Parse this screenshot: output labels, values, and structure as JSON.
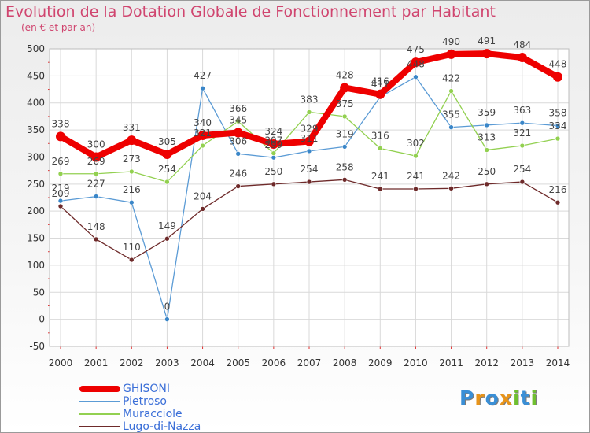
{
  "header": {
    "title": "Evolution de la Dotation Globale de Fonctionnement par Habitant",
    "subtitle": "(en € et par an)"
  },
  "brand": {
    "logo_text": "Proxiti",
    "letters": [
      {
        "char": "P",
        "color": "#3a8fd6"
      },
      {
        "char": "r",
        "color": "#e8941a"
      },
      {
        "char": "o",
        "color": "#3a8fd6"
      },
      {
        "char": "x",
        "color": "#e8941a"
      },
      {
        "char": "i",
        "color": "#6fbf2f"
      },
      {
        "char": "t",
        "color": "#3a8fd6"
      },
      {
        "char": "i",
        "color": "#6fbf2f"
      }
    ]
  },
  "colors": {
    "title": "#d0456f",
    "legend_text": "#3b6fd8",
    "grid": "#d9d9d9",
    "axis_text": "#333333",
    "tick_marks": "#e03030"
  },
  "chart_data": {
    "type": "line",
    "title": "Evolution de la Dotation Globale de Fonctionnement par Habitant",
    "subtitle": "(en € et par an)",
    "x": [
      2000,
      2001,
      2002,
      2003,
      2004,
      2005,
      2006,
      2007,
      2008,
      2009,
      2010,
      2011,
      2012,
      2013,
      2014
    ],
    "ylim": [
      -50,
      500
    ],
    "yticks": [
      -50,
      0,
      50,
      100,
      150,
      200,
      250,
      300,
      350,
      400,
      450,
      500
    ],
    "grid": true,
    "legend_position": "bottom-left",
    "series": [
      {
        "name": "GHISONI",
        "color": "#ee0000",
        "values": [
          338,
          300,
          331,
          305,
          340,
          345,
          324,
          329,
          428,
          416,
          475,
          490,
          491,
          484,
          448
        ],
        "labels": [
          "338",
          "300",
          "331",
          "305",
          "340",
          "345",
          "324",
          "329",
          "428",
          "416",
          "475",
          "490",
          "491",
          "484",
          "448"
        ]
      },
      {
        "name": "Pietroso",
        "color": "#5b9bd5",
        "values": [
          219,
          227,
          216,
          0,
          427,
          306,
          299,
          311,
          319,
          411,
          448,
          355,
          359,
          363,
          358
        ],
        "labels": [
          "219",
          "227",
          "216",
          "0",
          "427",
          "306",
          "299",
          "311",
          "319",
          "411",
          "448",
          "355",
          "359",
          "363",
          "358"
        ]
      },
      {
        "name": "Muracciole",
        "color": "#92d050",
        "values": [
          269,
          269,
          273,
          254,
          321,
          366,
          307,
          383,
          375,
          316,
          302,
          422,
          313,
          321,
          334
        ],
        "labels": [
          "269",
          "269",
          "273",
          "254",
          "321",
          "366",
          "307",
          "383",
          "375",
          "316",
          "302",
          "422",
          "313",
          "321",
          "334"
        ]
      },
      {
        "name": "Lugo-di-Nazza",
        "color": "#6e2a2a",
        "values": [
          209,
          148,
          110,
          149,
          204,
          246,
          250,
          254,
          258,
          241,
          241,
          242,
          250,
          254,
          216
        ],
        "labels": [
          "209",
          "148",
          "110",
          "149",
          "204",
          "246",
          "250",
          "254",
          "258",
          "241",
          "241",
          "242",
          "250",
          "254",
          "216"
        ]
      }
    ]
  }
}
